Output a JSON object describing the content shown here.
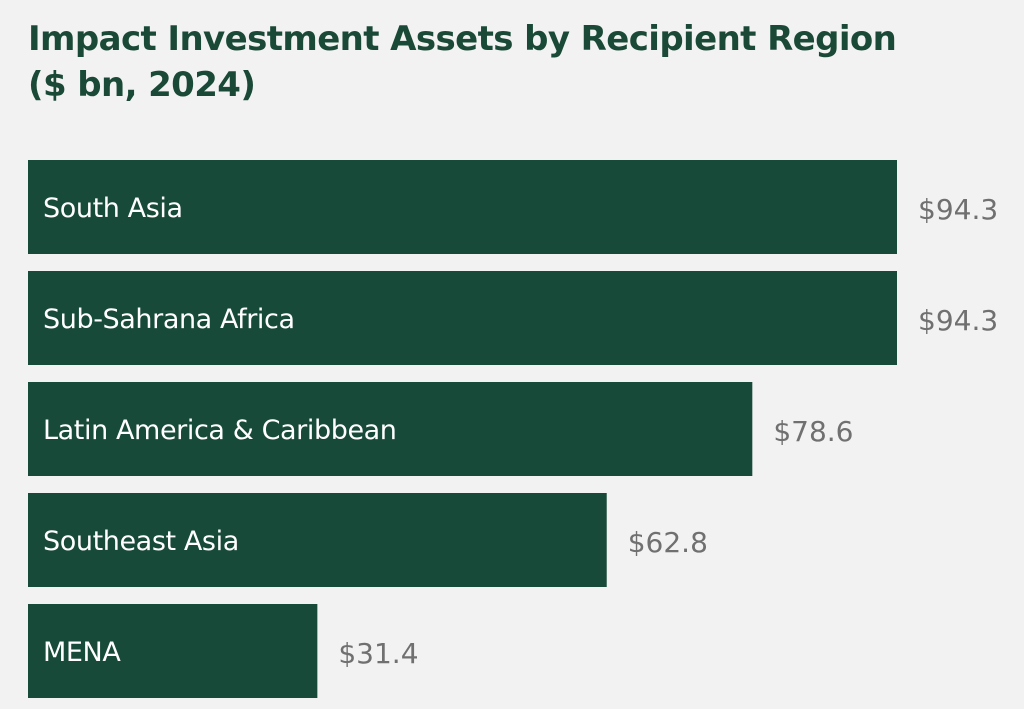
{
  "chart_data": {
    "type": "bar",
    "orientation": "horizontal",
    "title_lines": [
      "Impact Investment Assets by Recipient Region",
      "($ bn, 2024)"
    ],
    "categories": [
      "South Asia",
      "Sub-Sahrana Africa",
      "Latin America & Caribbean",
      "Southeast Asia",
      "MENA"
    ],
    "values": [
      94.3,
      94.3,
      78.6,
      62.8,
      31.4
    ],
    "value_labels": [
      "$94.3",
      "$94.3",
      "$78.6",
      "$62.8",
      "$31.4"
    ],
    "xlim": [
      0,
      94.3
    ],
    "grid": false,
    "legend": "none",
    "bar_color": "#174a38",
    "value_label_color": "#707070"
  }
}
